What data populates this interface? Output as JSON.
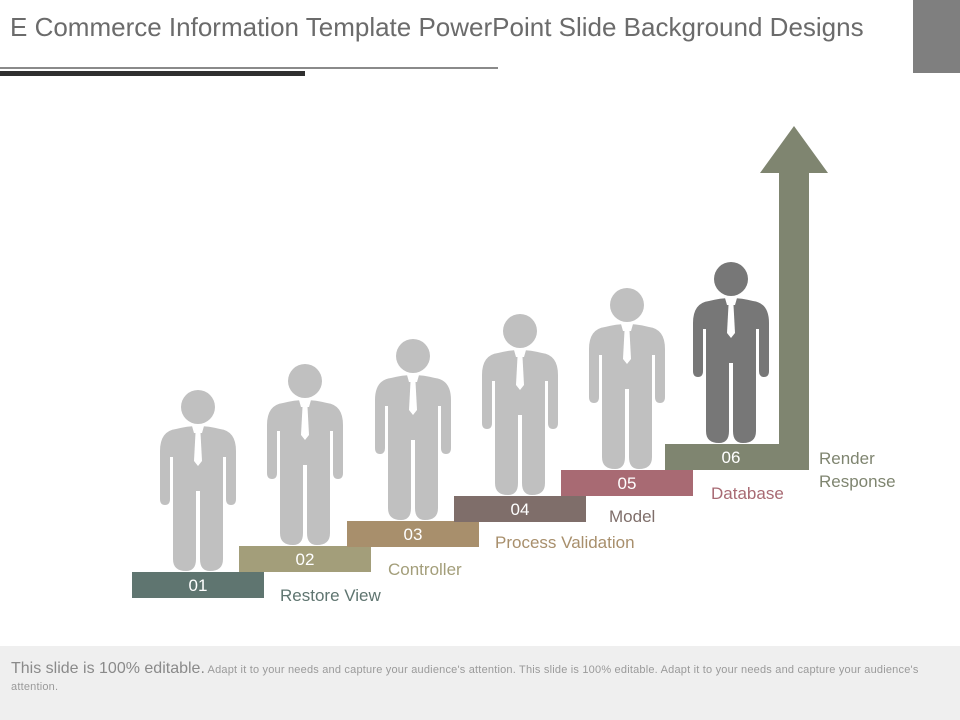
{
  "title": "E Commerce Information Template PowerPoint Slide Background Designs",
  "colors": {
    "title": "#6b6b6b",
    "arrow": "#7f8570",
    "person_light": "#c0c0c0",
    "person_dark": "#777777"
  },
  "steps": [
    {
      "number": "01",
      "label": "Restore View",
      "color": "#5f7570"
    },
    {
      "number": "02",
      "label": "Controller",
      "color": "#a39e7a"
    },
    {
      "number": "03",
      "label": "Process Validation",
      "color": "#a88f6c"
    },
    {
      "number": "04",
      "label": "Model",
      "color": "#7f6e6a"
    },
    {
      "number": "05",
      "label": "Database",
      "color": "#a86a73"
    },
    {
      "number": "06",
      "label": "Render Response",
      "color": "#7f8570"
    }
  ],
  "footer": {
    "lead": "This slide is 100% editable.",
    "body": "Adapt it to your needs and capture your audience's attention. This slide is 100% editable. Adapt it to your needs and capture your audience's attention."
  }
}
